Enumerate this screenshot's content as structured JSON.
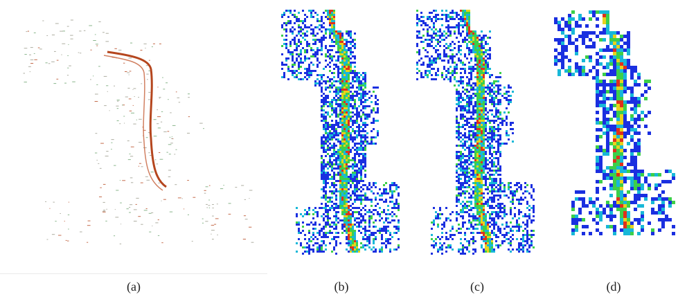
{
  "figure": {
    "panels": [
      {
        "id": "a",
        "caption": "(a)",
        "style": "point-cloud",
        "icon": "point-cloud-map"
      },
      {
        "id": "b",
        "caption": "(b)",
        "style": "voxel-heatmap-fine",
        "icon": "heatmap-voxel-map"
      },
      {
        "id": "c",
        "caption": "(c)",
        "style": "voxel-heatmap-fine",
        "icon": "heatmap-voxel-map"
      },
      {
        "id": "d",
        "caption": "(d)",
        "style": "voxel-heatmap-coarse",
        "icon": "heatmap-voxel-map"
      }
    ],
    "colors": {
      "pointcloud_main": "#b5461e",
      "pointcloud_green": "#6aa36d",
      "pointcloud_gray": "#9a9a8a",
      "heat_low": "#1a2fe0",
      "heat_mid": "#18b8d8",
      "heat_high": "#3ccf4a",
      "heat_peak": "#e8d21c",
      "heat_max": "#e0301a"
    }
  }
}
